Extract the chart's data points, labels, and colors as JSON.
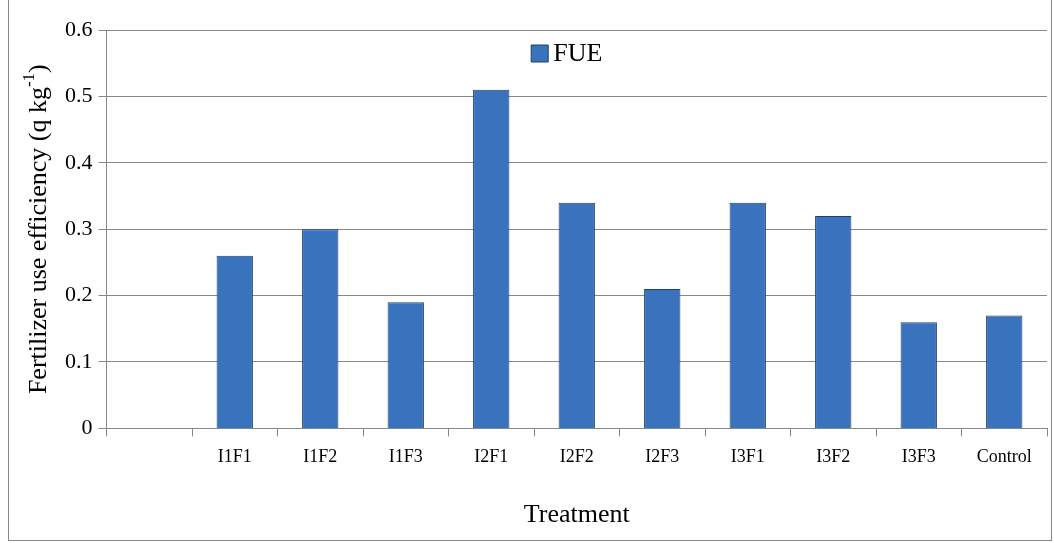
{
  "chart_data": {
    "type": "bar",
    "xlabel": "Treatment",
    "ylabel": "Fertilizer use efficiency (q kg$^{-1}$)",
    "categories": [
      null,
      "I1F1",
      "I1F2",
      "I1F3",
      "I2F1",
      "I2F2",
      "I2F3",
      "I3F1",
      "I3F2",
      "I3F3",
      "Control"
    ],
    "series": [
      {
        "name": "FUE",
        "color": "#3a73bd",
        "values": [
          null,
          0.26,
          0.3,
          0.19,
          0.51,
          0.34,
          0.21,
          0.34,
          0.32,
          0.16,
          0.17
        ]
      }
    ],
    "ylim": [
      0,
      0.6
    ],
    "yticks": [
      0,
      0.1,
      0.2,
      0.3,
      0.4,
      0.5,
      0.6
    ],
    "grid": "y",
    "legend": "top"
  }
}
